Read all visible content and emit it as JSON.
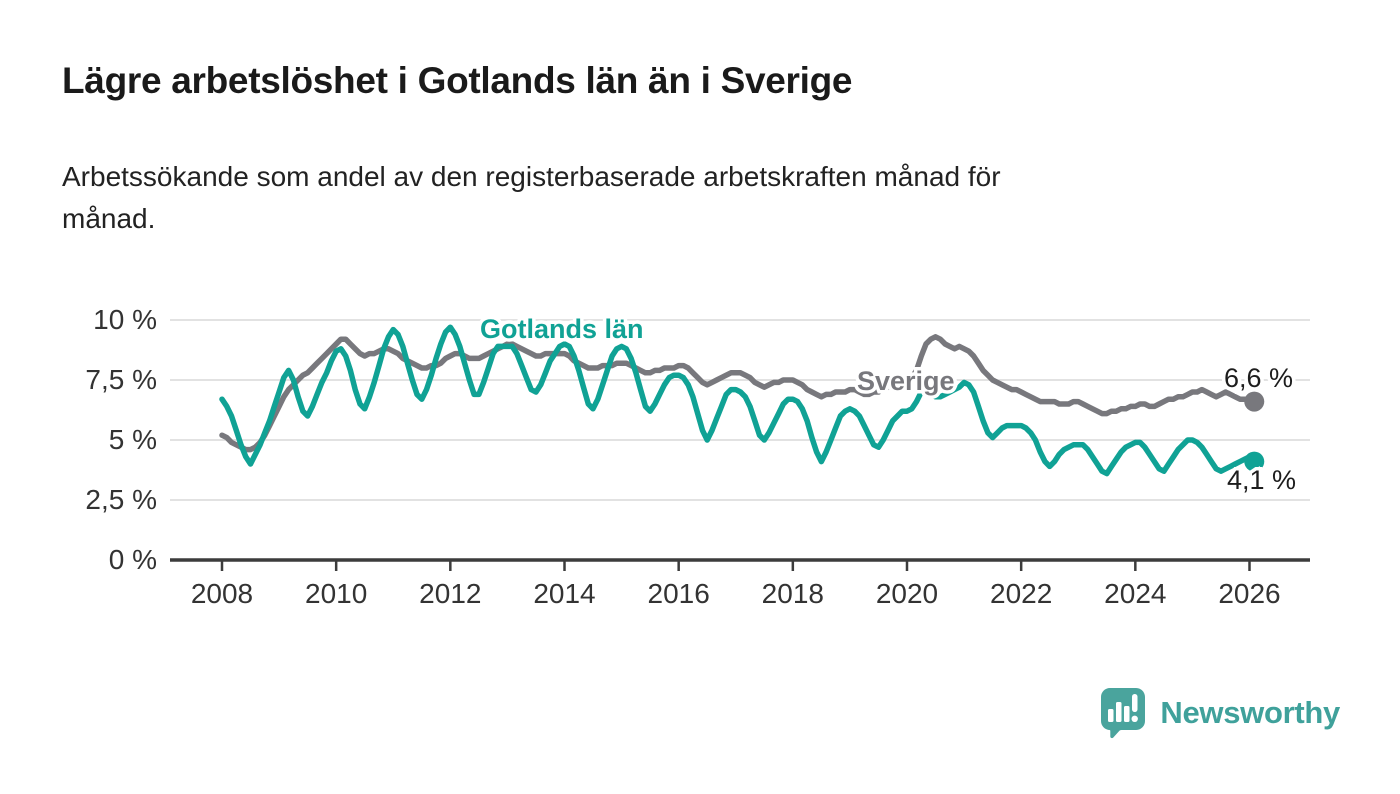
{
  "header": {
    "title": "Lägre arbetslöshet i Gotlands län än i Sverige",
    "subtitle": "Arbetssökande som andel av den registerbaserade arbetskraften månad för månad.",
    "subtitle_lines": [
      "Arbetssökande som andel av den registerbaserade arbetskraften månad för",
      "månad."
    ]
  },
  "chart_data": {
    "type": "line",
    "title": "Lägre arbetslöshet i Gotlands län än i Sverige",
    "subtitle": "Arbetssökande som andel av den registerbaserade arbetskraften månad för månad.",
    "frequency": "monthly",
    "x_start": "2008-01",
    "x_end": "2026-02",
    "x_ticks": [
      "2008",
      "2010",
      "2012",
      "2014",
      "2016",
      "2018",
      "2020",
      "2022",
      "2024",
      "2026"
    ],
    "y_ticks": [
      {
        "value": 0,
        "label": "0 %"
      },
      {
        "value": 2.5,
        "label": "2,5 %"
      },
      {
        "value": 5,
        "label": "5 %"
      },
      {
        "value": 7.5,
        "label": "7,5 %"
      },
      {
        "value": 10,
        "label": "10 %"
      }
    ],
    "ylim": [
      0,
      10.4
    ],
    "grid": "horizontal",
    "colors": {
      "axis": "#3C3C3C",
      "gridline": "#D9D9D9",
      "tick_text": "#333333",
      "annotation_text": "#1D1D1D"
    },
    "series": [
      {
        "name": "Sverige",
        "color": "#78787D",
        "end_label": "6,6 %",
        "last_value": 6.6,
        "values": [
          5.2,
          5.1,
          4.9,
          4.8,
          4.7,
          4.6,
          4.6,
          4.7,
          4.9,
          5.2,
          5.6,
          6.0,
          6.4,
          6.8,
          7.1,
          7.3,
          7.5,
          7.7,
          7.8,
          8.0,
          8.2,
          8.4,
          8.6,
          8.8,
          9.0,
          9.2,
          9.2,
          9.0,
          8.8,
          8.6,
          8.5,
          8.6,
          8.6,
          8.7,
          8.8,
          8.8,
          8.7,
          8.6,
          8.4,
          8.3,
          8.2,
          8.1,
          8.0,
          8.0,
          8.1,
          8.1,
          8.2,
          8.4,
          8.5,
          8.6,
          8.6,
          8.5,
          8.4,
          8.4,
          8.4,
          8.5,
          8.6,
          8.7,
          8.8,
          8.9,
          9.0,
          9.0,
          8.9,
          8.8,
          8.7,
          8.6,
          8.5,
          8.5,
          8.6,
          8.6,
          8.6,
          8.6,
          8.6,
          8.5,
          8.3,
          8.2,
          8.1,
          8.0,
          8.0,
          8.0,
          8.1,
          8.1,
          8.1,
          8.2,
          8.2,
          8.2,
          8.1,
          8.0,
          7.9,
          7.8,
          7.8,
          7.9,
          7.9,
          8.0,
          8.0,
          8.0,
          8.1,
          8.1,
          8.0,
          7.8,
          7.6,
          7.4,
          7.3,
          7.4,
          7.5,
          7.6,
          7.7,
          7.8,
          7.8,
          7.8,
          7.7,
          7.6,
          7.4,
          7.3,
          7.2,
          7.3,
          7.4,
          7.4,
          7.5,
          7.5,
          7.5,
          7.4,
          7.3,
          7.1,
          7.0,
          6.9,
          6.8,
          6.9,
          6.9,
          7.0,
          7.0,
          7.0,
          7.1,
          7.1,
          7.0,
          6.9,
          6.9,
          7.0,
          7.0,
          7.1,
          7.2,
          7.3,
          7.4,
          7.5,
          7.5,
          7.6,
          7.9,
          8.5,
          9.0,
          9.2,
          9.3,
          9.2,
          9.0,
          8.9,
          8.8,
          8.9,
          8.8,
          8.7,
          8.5,
          8.2,
          7.9,
          7.7,
          7.5,
          7.4,
          7.3,
          7.2,
          7.1,
          7.1,
          7.0,
          6.9,
          6.8,
          6.7,
          6.6,
          6.6,
          6.6,
          6.6,
          6.5,
          6.5,
          6.5,
          6.6,
          6.6,
          6.5,
          6.4,
          6.3,
          6.2,
          6.1,
          6.1,
          6.2,
          6.2,
          6.3,
          6.3,
          6.4,
          6.4,
          6.5,
          6.5,
          6.4,
          6.4,
          6.5,
          6.6,
          6.7,
          6.7,
          6.8,
          6.8,
          6.9,
          7.0,
          7.0,
          7.1,
          7.0,
          6.9,
          6.8,
          6.9,
          7.0,
          6.9,
          6.8,
          6.7,
          6.7,
          6.7,
          6.6
        ]
      },
      {
        "name": "Gotlands län",
        "color": "#10A295",
        "end_label": "4,1 %",
        "last_value": 4.1,
        "values": [
          6.7,
          6.4,
          6.0,
          5.4,
          4.8,
          4.3,
          4.0,
          4.4,
          4.8,
          5.3,
          5.8,
          6.4,
          7.0,
          7.6,
          7.9,
          7.5,
          6.8,
          6.2,
          6.0,
          6.4,
          6.9,
          7.4,
          7.8,
          8.3,
          8.7,
          8.8,
          8.5,
          7.9,
          7.1,
          6.5,
          6.3,
          6.8,
          7.4,
          8.1,
          8.8,
          9.3,
          9.6,
          9.4,
          8.9,
          8.2,
          7.5,
          6.9,
          6.7,
          7.1,
          7.7,
          8.4,
          9.0,
          9.5,
          9.7,
          9.4,
          8.9,
          8.2,
          7.5,
          6.9,
          6.9,
          7.4,
          8.0,
          8.6,
          8.9,
          8.9,
          8.9,
          8.9,
          8.6,
          8.1,
          7.6,
          7.1,
          7.0,
          7.3,
          7.8,
          8.3,
          8.6,
          8.9,
          9.0,
          8.9,
          8.5,
          7.9,
          7.2,
          6.5,
          6.3,
          6.7,
          7.3,
          7.9,
          8.5,
          8.8,
          8.9,
          8.8,
          8.4,
          7.8,
          7.1,
          6.4,
          6.2,
          6.5,
          6.9,
          7.3,
          7.6,
          7.7,
          7.7,
          7.6,
          7.3,
          6.8,
          6.1,
          5.4,
          5.0,
          5.4,
          5.9,
          6.4,
          6.9,
          7.1,
          7.1,
          7.0,
          6.8,
          6.4,
          5.8,
          5.2,
          5.0,
          5.3,
          5.7,
          6.1,
          6.5,
          6.7,
          6.7,
          6.6,
          6.3,
          5.8,
          5.1,
          4.5,
          4.1,
          4.5,
          5.0,
          5.5,
          6.0,
          6.2,
          6.3,
          6.2,
          6.0,
          5.6,
          5.2,
          4.8,
          4.7,
          5.0,
          5.4,
          5.8,
          6.0,
          6.2,
          6.2,
          6.3,
          6.6,
          7.0,
          7.1,
          6.9,
          6.8,
          6.8,
          6.9,
          7.0,
          7.1,
          7.2,
          7.4,
          7.3,
          7.0,
          6.4,
          5.8,
          5.3,
          5.1,
          5.3,
          5.5,
          5.6,
          5.6,
          5.6,
          5.6,
          5.5,
          5.3,
          5.0,
          4.5,
          4.1,
          3.9,
          4.1,
          4.4,
          4.6,
          4.7,
          4.8,
          4.8,
          4.8,
          4.6,
          4.3,
          4.0,
          3.7,
          3.6,
          3.9,
          4.2,
          4.5,
          4.7,
          4.8,
          4.9,
          4.9,
          4.7,
          4.4,
          4.1,
          3.8,
          3.7,
          4.0,
          4.3,
          4.6,
          4.8,
          5.0,
          5.0,
          4.9,
          4.7,
          4.4,
          4.1,
          3.8,
          3.7,
          3.8,
          3.9,
          4.0,
          4.1,
          4.2,
          4.3,
          4.1
        ]
      }
    ],
    "legend_position": "inline-labels"
  },
  "footer": {
    "brand": "Newsworthy",
    "brand_color": "#3FA19B",
    "icon": "newsworthy-speech-bubble-chart-icon",
    "icon_color": "#4AA49D"
  }
}
